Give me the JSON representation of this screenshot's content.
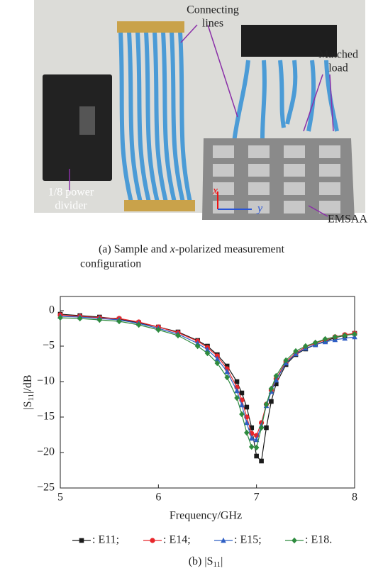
{
  "photo": {
    "labels": {
      "connecting": [
        "Connecting",
        "lines"
      ],
      "matched": [
        "Matched",
        "load"
      ],
      "divider": [
        "1/8 power",
        "divider"
      ],
      "emsaa": "EMSAA"
    },
    "axes": {
      "x": "x",
      "y": "y"
    },
    "caption": {
      "prefix": "(a) Sample and ",
      "italic": "x",
      "suffix": "-polarized measurement",
      "line2": "configuration"
    }
  },
  "chart_data": {
    "type": "line",
    "xlabel": "Frequency/GHz",
    "ylabel": {
      "prefix": "|S",
      "sub": "11",
      "suffix": "|/dB"
    },
    "caption": {
      "prefix": "(b) |S",
      "sub": "11",
      "suffix": "|"
    },
    "x": [
      5,
      5.2,
      5.4,
      5.6,
      5.8,
      6,
      6.2,
      6.4,
      6.5,
      6.6,
      6.7,
      6.8,
      6.85,
      6.9,
      6.95,
      7,
      7.05,
      7.1,
      7.15,
      7.2,
      7.3,
      7.4,
      7.5,
      7.6,
      7.7,
      7.8,
      7.9,
      8
    ],
    "series": [
      {
        "name": ": E11;",
        "color": "#1a1a1a",
        "marker": "square",
        "values": [
          -0.5,
          -0.7,
          -0.9,
          -1.2,
          -1.7,
          -2.3,
          -3.0,
          -4.2,
          -5.0,
          -6.2,
          -7.8,
          -10.0,
          -11.6,
          -13.6,
          -16.5,
          -20.5,
          -21.2,
          -16.5,
          -12.8,
          -10.3,
          -7.6,
          -6.2,
          -5.4,
          -4.8,
          -4.3,
          -3.8,
          -3.5,
          -3.2
        ]
      },
      {
        "name": ": E14;",
        "color": "#e8262b",
        "marker": "circle",
        "values": [
          -0.6,
          -0.8,
          -1.0,
          -1.1,
          -1.6,
          -2.3,
          -3.1,
          -4.3,
          -5.2,
          -6.4,
          -8.2,
          -10.8,
          -12.6,
          -15.0,
          -17.3,
          -17.6,
          -15.8,
          -13.2,
          -11.2,
          -9.6,
          -7.2,
          -6.0,
          -5.1,
          -4.6,
          -4.1,
          -3.7,
          -3.4,
          -3.2
        ]
      },
      {
        "name": ": E15;",
        "color": "#2f5fc4",
        "marker": "triangle",
        "values": [
          -0.8,
          -0.9,
          -1.1,
          -1.3,
          -1.8,
          -2.5,
          -3.3,
          -4.6,
          -5.5,
          -6.8,
          -8.6,
          -11.3,
          -13.3,
          -15.8,
          -18.0,
          -18.2,
          -16.2,
          -13.4,
          -11.4,
          -9.8,
          -7.4,
          -6.1,
          -5.3,
          -4.8,
          -4.4,
          -4.1,
          -3.9,
          -3.7
        ]
      },
      {
        "name": ": E18.",
        "color": "#2e8b3e",
        "marker": "diamond",
        "values": [
          -1.0,
          -1.1,
          -1.3,
          -1.5,
          -2.0,
          -2.7,
          -3.5,
          -5.0,
          -6.0,
          -7.4,
          -9.4,
          -12.3,
          -14.6,
          -17.2,
          -19.2,
          -19.3,
          -16.5,
          -13.2,
          -11.0,
          -9.2,
          -7.0,
          -5.7,
          -5.0,
          -4.5,
          -4.0,
          -3.7,
          -3.5,
          -3.3
        ]
      }
    ],
    "xlim": [
      5,
      8
    ],
    "xticks": [
      5,
      6,
      7,
      8
    ],
    "ylim": [
      -25,
      2
    ],
    "yticks": [
      {
        "value": -25,
        "label": "−25"
      },
      {
        "value": -20,
        "label": "−20"
      },
      {
        "value": -15,
        "label": "−15"
      },
      {
        "value": -10,
        "label": "−10"
      },
      {
        "value": -5,
        "label": "−5"
      },
      0
    ]
  }
}
